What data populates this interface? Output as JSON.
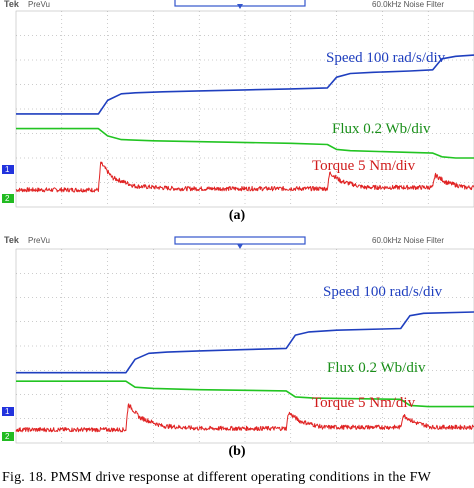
{
  "scope": {
    "brand": "Tek",
    "mode": "PreVu",
    "filter_text": "60.0kHz  Noise Filter",
    "channel_markers": [
      "1",
      "2"
    ]
  },
  "labels": {
    "speed": "Speed 100 rad/s/div",
    "flux": "Flux 0.2 Wb/div",
    "torque": "Torque 5 Nm/div"
  },
  "colors": {
    "speed": "#1f3fbf",
    "flux": "#22c422",
    "torque": "#e02424",
    "grid": "#999999"
  },
  "panels": [
    {
      "label": "(a)"
    },
    {
      "label": "(b)"
    }
  ],
  "caption": "Fig. 18.   PMSM drive response at different operating conditions in the FW",
  "chart_data": [
    {
      "type": "line",
      "panel": "(a)",
      "grid": true,
      "x_range": [
        0,
        10
      ],
      "y_range": [
        -4,
        4
      ],
      "series": [
        {
          "name": "Speed 100 rad/s/div",
          "x": [
            0,
            1.8,
            2.0,
            2.3,
            2.6,
            3.2,
            4.0,
            5.0,
            6.0,
            6.8,
            7.0,
            7.3,
            7.8,
            8.6,
            9.1,
            9.3,
            9.6,
            10
          ],
          "y": [
            -0.2,
            -0.2,
            0.35,
            0.62,
            0.66,
            0.7,
            0.74,
            0.78,
            0.82,
            0.86,
            1.3,
            1.45,
            1.5,
            1.55,
            1.6,
            2.05,
            2.15,
            2.2
          ]
        },
        {
          "name": "Flux 0.2 Wb/div",
          "x": [
            0,
            1.8,
            2.0,
            2.3,
            3.0,
            6.0,
            6.8,
            7.0,
            7.3,
            9.1,
            9.3,
            9.6,
            10
          ],
          "y": [
            -0.8,
            -0.8,
            -1.1,
            -1.25,
            -1.3,
            -1.4,
            -1.45,
            -1.65,
            -1.7,
            -1.8,
            -1.95,
            -2.0,
            -2.0
          ]
        },
        {
          "name": "Torque 5 Nm/div",
          "x": [
            0,
            1.8,
            1.85,
            2.1,
            2.6,
            3.5,
            6.8,
            6.85,
            7.1,
            7.6,
            9.1,
            9.15,
            9.4,
            9.8,
            10
          ],
          "y": [
            -3.3,
            -3.3,
            -2.2,
            -2.8,
            -3.15,
            -3.25,
            -3.25,
            -2.6,
            -2.95,
            -3.2,
            -3.2,
            -2.7,
            -3.0,
            -3.2,
            -3.2
          ]
        }
      ]
    },
    {
      "type": "line",
      "panel": "(b)",
      "grid": true,
      "x_range": [
        0,
        10
      ],
      "y_range": [
        -4,
        4
      ],
      "series": [
        {
          "name": "Speed 100 rad/s/div",
          "x": [
            0,
            2.4,
            2.6,
            2.9,
            3.3,
            4.0,
            5.0,
            5.9,
            6.1,
            6.4,
            7.0,
            8.0,
            8.4,
            8.6,
            8.9,
            10
          ],
          "y": [
            -1.1,
            -1.1,
            -0.55,
            -0.3,
            -0.25,
            -0.2,
            -0.15,
            -0.1,
            0.45,
            0.58,
            0.65,
            0.7,
            0.72,
            1.25,
            1.35,
            1.4
          ]
        },
        {
          "name": "Flux 0.2 Wb/div",
          "x": [
            0,
            2.4,
            2.6,
            3.0,
            4.0,
            5.9,
            6.1,
            6.5,
            8.4,
            8.6,
            9.0,
            10
          ],
          "y": [
            -1.45,
            -1.45,
            -1.7,
            -1.75,
            -1.8,
            -1.85,
            -2.1,
            -2.15,
            -2.2,
            -2.45,
            -2.5,
            -2.5
          ]
        },
        {
          "name": "Torque 5 Nm/div",
          "x": [
            0,
            2.4,
            2.45,
            2.7,
            3.2,
            4.0,
            5.9,
            5.95,
            6.2,
            6.7,
            8.4,
            8.45,
            8.7,
            9.1,
            10
          ],
          "y": [
            -3.45,
            -3.45,
            -2.4,
            -2.95,
            -3.3,
            -3.4,
            -3.4,
            -2.75,
            -3.1,
            -3.35,
            -3.35,
            -2.85,
            -3.15,
            -3.35,
            -3.35
          ]
        }
      ]
    }
  ]
}
